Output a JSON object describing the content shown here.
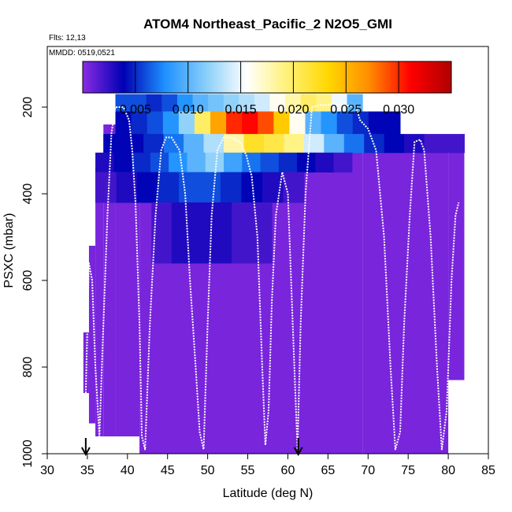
{
  "chart_data": {
    "type": "heatmap",
    "title": "ATOM4 Northeast_Pacific_2 N2O5_GMI",
    "flights_label": "Flts: 12,13",
    "mmdd_label": "MMDD: 0519,0521",
    "xlabel": "Latitude (deg N)",
    "ylabel": "PSXC (mbar)",
    "xlim": [
      30,
      85
    ],
    "ylim": [
      1000,
      60
    ],
    "y_reversed": true,
    "x_ticks": [
      "30",
      "35",
      "40",
      "45",
      "50",
      "55",
      "60",
      "65",
      "70",
      "75",
      "80",
      "85"
    ],
    "y_ticks": [
      "200",
      "400",
      "600",
      "800",
      "1000"
    ],
    "colorbar": {
      "range": [
        0.0,
        0.035
      ],
      "tick_labels": [
        "0.005",
        "0.010",
        "0.015",
        "0.020",
        "0.025",
        "0.030"
      ],
      "tick_values": [
        0.005,
        0.01,
        0.015,
        0.02,
        0.025,
        0.03
      ],
      "colors": [
        "#8a2be2",
        "#0000b4",
        "#1e90ff",
        "#87cefa",
        "#ffffff",
        "#fff176",
        "#ffd700",
        "#ff8c00",
        "#ff0000",
        "#b00000"
      ]
    },
    "grid": false,
    "arrows_at_lat": [
      34.8,
      61.3
    ],
    "column_coverage": [
      {
        "lat0": 34.5,
        "lat1": 35.2,
        "p_top": 720,
        "p_bot": 860
      },
      {
        "lat0": 35.2,
        "lat1": 36.0,
        "p_top": 520,
        "p_bot": 930
      },
      {
        "lat0": 36.0,
        "lat1": 37.0,
        "p_top": 340,
        "p_bot": 960
      },
      {
        "lat0": 37.0,
        "lat1": 38.5,
        "p_top": 240,
        "p_bot": 960
      },
      {
        "lat0": 38.5,
        "lat1": 41.5,
        "p_top": 170,
        "p_bot": 960
      },
      {
        "lat0": 41.5,
        "lat1": 69.3,
        "p_top": 170,
        "p_bot": 1000
      },
      {
        "lat0": 69.3,
        "lat1": 74.0,
        "p_top": 210,
        "p_bot": 1000
      },
      {
        "lat0": 74.0,
        "lat1": 80.0,
        "p_top": 265,
        "p_bot": 1000
      },
      {
        "lat0": 80.0,
        "lat1": 82.0,
        "p_top": 265,
        "p_bot": 830
      }
    ],
    "heatmap_cells": [
      {
        "lat0": 38.5,
        "lat1": 69.3,
        "p0": 170,
        "p1": 210,
        "values": [
          0.006,
          0.006,
          0.005,
          0.006,
          0.008,
          0.01,
          0.011,
          0.012,
          0.013,
          0.014,
          0.016,
          0.018,
          0.02,
          0.019,
          0.015,
          0.01
        ]
      },
      {
        "lat0": 38.5,
        "lat1": 74.0,
        "p0": 210,
        "p1": 262,
        "values": [
          0.004,
          0.005,
          0.006,
          0.008,
          0.012,
          0.02,
          0.026,
          0.03,
          0.031,
          0.029,
          0.024,
          0.016,
          0.01,
          0.008,
          0.006,
          0.005,
          0.004,
          0.004
        ]
      },
      {
        "lat0": 37.0,
        "lat1": 82.0,
        "p0": 262,
        "p1": 305,
        "values": [
          0.004,
          0.004,
          0.005,
          0.007,
          0.01,
          0.013,
          0.018,
          0.022,
          0.021,
          0.019,
          0.014,
          0.01,
          0.007,
          0.005,
          0.004,
          0.003,
          0.002,
          0.002
        ]
      },
      {
        "lat0": 36.0,
        "lat1": 68.0,
        "p0": 305,
        "p1": 350,
        "values": [
          0.003,
          0.004,
          0.005,
          0.006,
          0.008,
          0.01,
          0.012,
          0.009,
          0.007,
          0.006,
          0.005,
          0.004,
          0.003,
          0.002
        ]
      },
      {
        "lat0": 36.0,
        "lat1": 62.0,
        "p0": 350,
        "p1": 420,
        "values": [
          0.002,
          0.003,
          0.004,
          0.005,
          0.006,
          0.006,
          0.005,
          0.004,
          0.003,
          0.002
        ]
      },
      {
        "lat0": 43.0,
        "lat1": 58.0,
        "p0": 420,
        "p1": 560,
        "values": [
          0.002,
          0.003,
          0.003,
          0.003,
          0.002,
          0.002
        ]
      }
    ],
    "flight_track": [
      [
        34.8,
        860
      ],
      [
        35.2,
        560
      ],
      [
        35.6,
        600
      ],
      [
        36.0,
        800
      ],
      [
        36.5,
        960
      ],
      [
        37.0,
        700
      ],
      [
        37.5,
        450
      ],
      [
        38.0,
        260
      ],
      [
        38.5,
        200
      ],
      [
        39.5,
        200
      ],
      [
        40.2,
        230
      ],
      [
        40.6,
        300
      ],
      [
        41.0,
        420
      ],
      [
        41.5,
        700
      ],
      [
        41.8,
        960
      ],
      [
        42.2,
        990
      ],
      [
        42.8,
        700
      ],
      [
        43.5,
        450
      ],
      [
        44.2,
        300
      ],
      [
        44.8,
        270
      ],
      [
        45.5,
        270
      ],
      [
        46.5,
        300
      ],
      [
        47.2,
        400
      ],
      [
        47.8,
        600
      ],
      [
        48.5,
        800
      ],
      [
        49.0,
        950
      ],
      [
        49.5,
        990
      ],
      [
        50.0,
        700
      ],
      [
        50.5,
        450
      ],
      [
        51.2,
        300
      ],
      [
        52.0,
        270
      ],
      [
        53.0,
        270
      ],
      [
        54.0,
        280
      ],
      [
        54.8,
        310
      ],
      [
        55.5,
        360
      ],
      [
        56.2,
        500
      ],
      [
        56.8,
        800
      ],
      [
        57.2,
        980
      ],
      [
        57.6,
        900
      ],
      [
        58.0,
        650
      ],
      [
        58.5,
        450
      ],
      [
        59.3,
        350
      ],
      [
        60.0,
        400
      ],
      [
        60.6,
        700
      ],
      [
        61.2,
        990
      ],
      [
        61.6,
        700
      ],
      [
        62.2,
        400
      ],
      [
        63.0,
        200
      ],
      [
        64.0,
        195
      ],
      [
        67.0,
        195
      ],
      [
        68.5,
        200
      ],
      [
        69.0,
        230
      ],
      [
        70.0,
        250
      ],
      [
        71.0,
        300
      ],
      [
        72.0,
        500
      ],
      [
        72.8,
        800
      ],
      [
        73.4,
        990
      ],
      [
        74.0,
        950
      ],
      [
        74.5,
        700
      ],
      [
        75.2,
        450
      ],
      [
        75.8,
        280
      ],
      [
        76.5,
        275
      ],
      [
        77.0,
        300
      ],
      [
        77.8,
        500
      ],
      [
        78.6,
        800
      ],
      [
        79.2,
        990
      ],
      [
        79.8,
        900
      ],
      [
        80.4,
        600
      ],
      [
        80.9,
        450
      ],
      [
        81.3,
        420
      ]
    ]
  }
}
